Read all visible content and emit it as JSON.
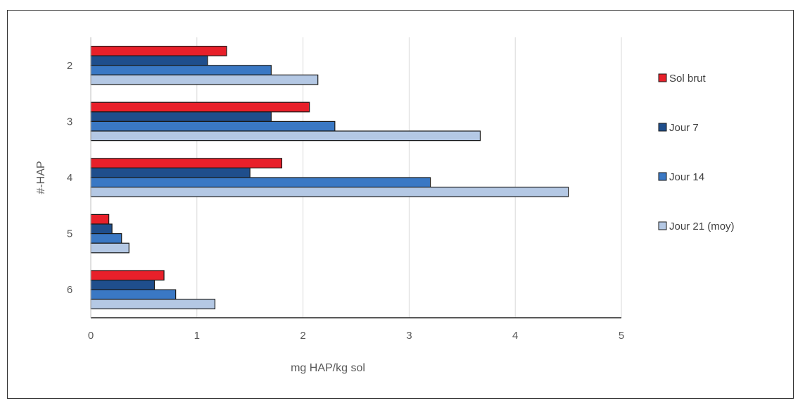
{
  "chart_data": {
    "type": "bar",
    "orientation": "horizontal",
    "categories": [
      "2",
      "3",
      "4",
      "5",
      "6"
    ],
    "series": [
      {
        "name": "Sol brut",
        "color": "#e8202a",
        "values": [
          1.28,
          2.06,
          1.8,
          0.17,
          0.69
        ]
      },
      {
        "name": "Jour 7",
        "color": "#1f4e8c",
        "values": [
          1.1,
          1.7,
          1.5,
          0.2,
          0.6
        ]
      },
      {
        "name": "Jour 14",
        "color": "#3a78c4",
        "values": [
          1.7,
          2.3,
          3.2,
          0.29,
          0.8
        ]
      },
      {
        "name": "Jour 21 (moy)",
        "color": "#b4c8e4",
        "values": [
          2.14,
          3.67,
          4.5,
          0.36,
          1.17
        ]
      }
    ],
    "xlabel": "mg HAP/kg sol",
    "ylabel": "#-HAP",
    "xlim": [
      0,
      5
    ],
    "xticks": [
      "0",
      "1",
      "2",
      "3",
      "4",
      "5"
    ],
    "grid": "vertical",
    "legend_position": "right"
  }
}
